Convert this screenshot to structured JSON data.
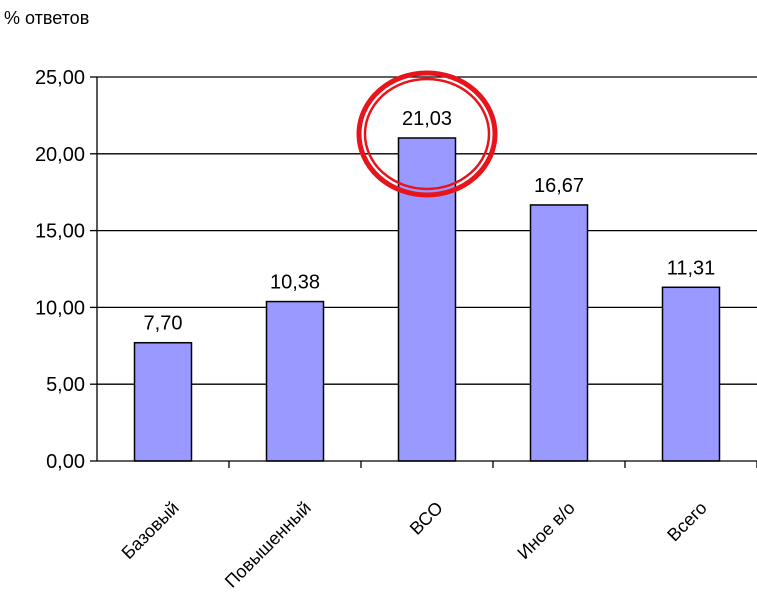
{
  "chart_data": {
    "type": "bar",
    "ylabel": "% ответов",
    "categories": [
      "Базовый",
      "Повышенный",
      "ВСО",
      "Иное в/о",
      "Всего"
    ],
    "values": [
      7.7,
      10.38,
      21.03,
      16.67,
      11.31
    ],
    "value_labels": [
      "7,70",
      "10,38",
      "21,03",
      "16,67",
      "11,31"
    ],
    "yticks": [
      "0,00",
      "5,00",
      "10,00",
      "15,00",
      "20,00",
      "25,00"
    ],
    "ylim": [
      0,
      25
    ],
    "grid": true,
    "highlighted_category": "ВСО",
    "colors": {
      "bar_fill": "#9999FF",
      "bar_stroke": "#000000",
      "grid": "#000000",
      "highlight_ring": "#E8141B"
    }
  }
}
